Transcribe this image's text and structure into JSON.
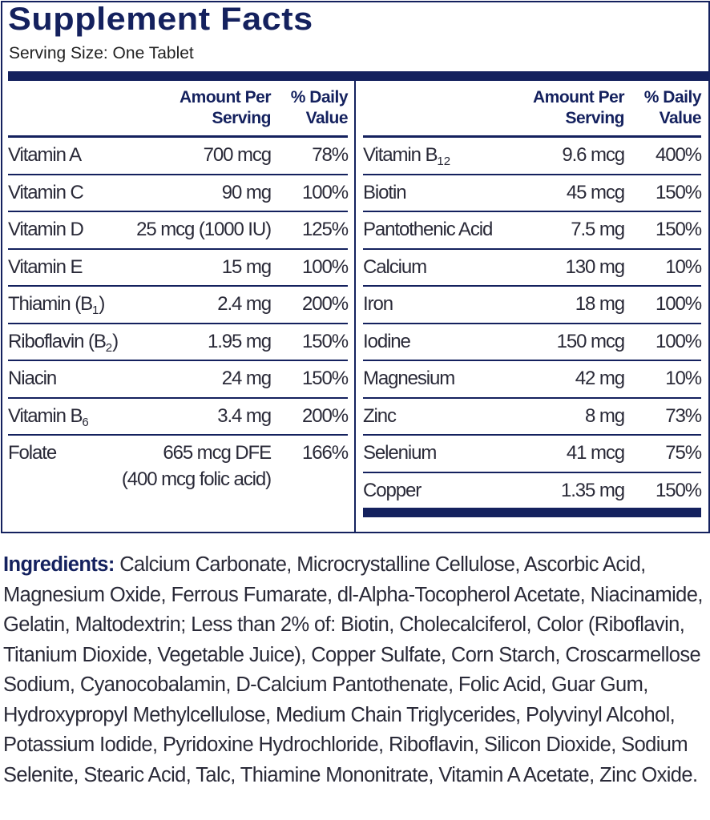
{
  "title": "Supplement Facts",
  "serving_size": "Serving Size: One Tablet",
  "headers": {
    "amount_line1": "Amount Per",
    "amount_line2": "Serving",
    "dv_line1": "% Daily",
    "dv_line2": "Value"
  },
  "left": [
    {
      "name": "Vitamin A",
      "sub": "",
      "amount": "700 mcg",
      "dv": "78%"
    },
    {
      "name": "Vitamin C",
      "sub": "",
      "amount": "90 mg",
      "dv": "100%"
    },
    {
      "name": "Vitamin D",
      "sub": "",
      "amount": "25 mcg (1000 IU)",
      "dv": "125%"
    },
    {
      "name": "Vitamin E",
      "sub": "",
      "amount": "15 mg",
      "dv": "100%"
    },
    {
      "name": "Thiamin (B",
      "sub": "1",
      "suffix": ")",
      "amount": "2.4 mg",
      "dv": "200%"
    },
    {
      "name": "Riboflavin (B",
      "sub": "2",
      "suffix": ")",
      "amount": "1.95 mg",
      "dv": "150%"
    },
    {
      "name": "Niacin",
      "sub": "",
      "amount": "24 mg",
      "dv": "150%"
    },
    {
      "name": "Vitamin B",
      "sub": "6",
      "amount": "3.4 mg",
      "dv": "200%"
    },
    {
      "name": "Folate",
      "sub": "",
      "amount": "665 mcg DFE",
      "amount2": "(400 mcg folic acid)",
      "dv": "166%"
    }
  ],
  "right": [
    {
      "name": "Vitamin B",
      "sub": "12",
      "amount": "9.6 mcg",
      "dv": "400%"
    },
    {
      "name": "Biotin",
      "amount": "45 mcg",
      "dv": "150%"
    },
    {
      "name": "Pantothenic Acid",
      "amount": "7.5 mg",
      "dv": "150%"
    },
    {
      "name": "Calcium",
      "amount": "130 mg",
      "dv": "10%"
    },
    {
      "name": "Iron",
      "amount": "18 mg",
      "dv": "100%"
    },
    {
      "name": "Iodine",
      "amount": "150 mcg",
      "dv": "100%"
    },
    {
      "name": "Magnesium",
      "amount": "42 mg",
      "dv": "10%"
    },
    {
      "name": "Zinc",
      "amount": "8 mg",
      "dv": "73%"
    },
    {
      "name": "Selenium",
      "amount": "41 mcg",
      "dv": "75%"
    },
    {
      "name": "Copper",
      "amount": "1.35 mg",
      "dv": "150%"
    }
  ],
  "ingredients": {
    "label": "Ingredients:",
    "text": " Calcium Carbonate, Microcrystalline Cellulose, Ascorbic Acid, Magnesium Oxide, Ferrous Fumarate, dl-Alpha-Tocopherol Acetate, Niacinamide, Gelatin, Maltodextrin; Less than 2% of: Biotin, Cholecalciferol, Color (Riboflavin, Titanium Dioxide, Vegetable Juice), Copper Sulfate, Corn Starch, Croscarmellose Sodium, Cyanocobalamin, D-Calcium Pantothenate, Folic Acid, Guar Gum, Hydroxypropyl Methylcellulose, Medium Chain Triglycerides, Polyvinyl Alcohol, Potassium Iodide, Pyridoxine Hydrochloride, Riboflavin, Silicon Dioxide, Sodium Selenite, Stearic Acid, Talc, Thiamine Mononitrate, Vitamin A Acetate, Zinc Oxide."
  },
  "colors": {
    "navy": "#14215e"
  }
}
